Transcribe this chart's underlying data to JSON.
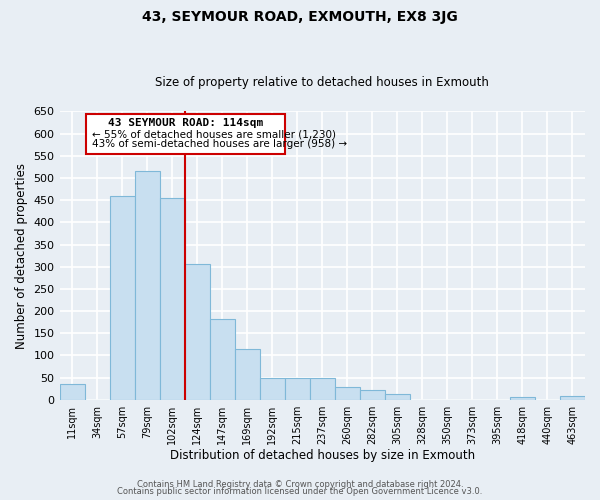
{
  "title": "43, SEYMOUR ROAD, EXMOUTH, EX8 3JG",
  "subtitle": "Size of property relative to detached houses in Exmouth",
  "xlabel": "Distribution of detached houses by size in Exmouth",
  "ylabel": "Number of detached properties",
  "footer_lines": [
    "Contains HM Land Registry data © Crown copyright and database right 2024.",
    "Contains public sector information licensed under the Open Government Licence v3.0."
  ],
  "bar_labels": [
    "11sqm",
    "34sqm",
    "57sqm",
    "79sqm",
    "102sqm",
    "124sqm",
    "147sqm",
    "169sqm",
    "192sqm",
    "215sqm",
    "237sqm",
    "260sqm",
    "282sqm",
    "305sqm",
    "328sqm",
    "350sqm",
    "373sqm",
    "395sqm",
    "418sqm",
    "440sqm",
    "463sqm"
  ],
  "bar_values": [
    35,
    0,
    460,
    515,
    455,
    305,
    182,
    115,
    50,
    50,
    50,
    29,
    22,
    13,
    0,
    0,
    0,
    0,
    5,
    0,
    8
  ],
  "bar_color": "#c8dff0",
  "bar_edge_color": "#7fb8d8",
  "ylim": [
    0,
    650
  ],
  "yticks": [
    0,
    50,
    100,
    150,
    200,
    250,
    300,
    350,
    400,
    450,
    500,
    550,
    600,
    650
  ],
  "property_line_x": 4.5,
  "property_line_label": "43 SEYMOUR ROAD: 114sqm",
  "annotation_line1": "← 55% of detached houses are smaller (1,230)",
  "annotation_line2": "43% of semi-detached houses are larger (958) →",
  "box_color": "#ffffff",
  "box_edge_color": "#cc0000",
  "line_color": "#cc0000",
  "figure_bg": "#e8eef4",
  "axes_bg": "#e8eef4"
}
